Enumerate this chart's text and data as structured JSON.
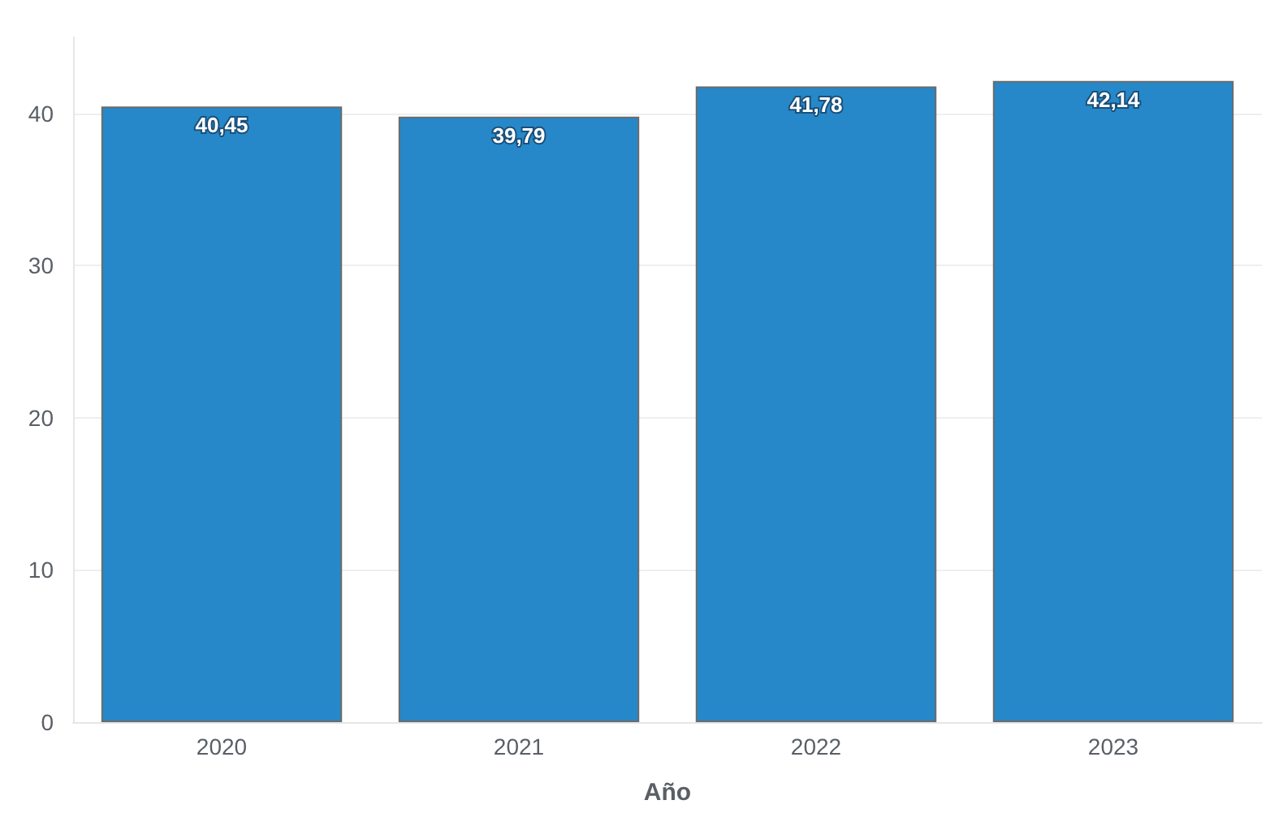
{
  "chart_data": {
    "type": "bar",
    "xlabel": "Año",
    "categories": [
      "2020",
      "2021",
      "2022",
      "2023"
    ],
    "values": [
      40.45,
      39.79,
      41.78,
      42.14
    ],
    "color": "#2688c8",
    "value_labels": [
      "40,45",
      "39,79",
      "41,78",
      "42,14"
    ],
    "ylim": [
      0,
      45
    ],
    "yticks": [
      0,
      10,
      20,
      30,
      40
    ],
    "grid": "y"
  }
}
